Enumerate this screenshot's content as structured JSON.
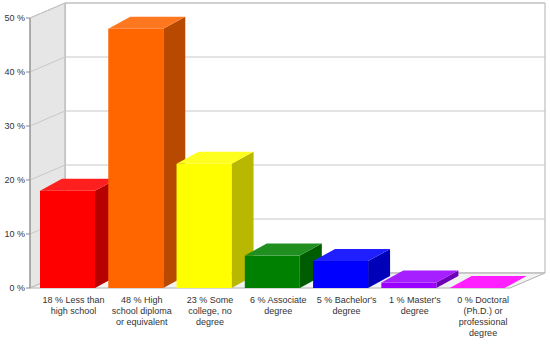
{
  "chart_data": {
    "type": "bar",
    "categories": [
      "18 % Less than high school",
      "48 % High school diploma or equivalent",
      "23 % Some college, no degree",
      "6 % Associate degree",
      "5 % Bachelor's degree",
      "1 % Master's degree",
      "0 % Doctoral (Ph.D.) or professional degree"
    ],
    "values": [
      18,
      48,
      23,
      6,
      5,
      1,
      0
    ],
    "colors": [
      "#ff0000",
      "#ff6600",
      "#ffff00",
      "#008000",
      "#0000ff",
      "#9900ff",
      "#ff00ff"
    ],
    "ylim": [
      0,
      50
    ],
    "yticks": [
      {
        "value": 0,
        "label": "0 %"
      },
      {
        "value": 10,
        "label": "10 %"
      },
      {
        "value": 20,
        "label": "20 %"
      },
      {
        "value": 30,
        "label": "30 %"
      },
      {
        "value": 40,
        "label": "40 %"
      },
      {
        "value": 50,
        "label": "50 %"
      }
    ],
    "grid": true
  }
}
